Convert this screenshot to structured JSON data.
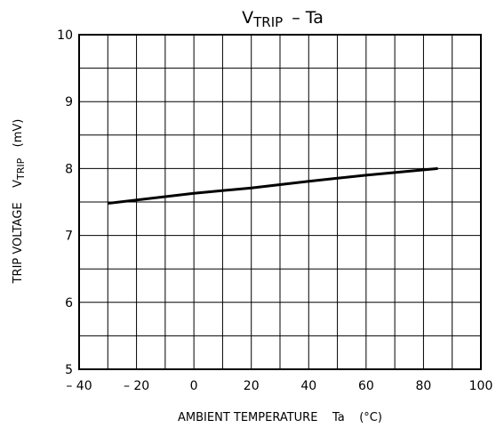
{
  "chart_data": {
    "type": "line",
    "title_main": "V",
    "title_sub": "TRIP",
    "title_rest": "–  Ta",
    "xlabel": "AMBIENT TEMPERATURE    Ta    (°C)",
    "ylabel_main": "TRIP VOLTAGE    V",
    "ylabel_sub": "TRIP",
    "ylabel_rest": "   (mV)",
    "xlim": [
      -40,
      100
    ],
    "ylim": [
      5,
      10
    ],
    "x_ticks": [
      -40,
      -20,
      0,
      20,
      40,
      60,
      80,
      100
    ],
    "x_tick_labels": [
      "– 40",
      "– 20",
      "0",
      "20",
      "40",
      "60",
      "80",
      "100"
    ],
    "y_ticks": [
      5,
      6,
      7,
      8,
      9,
      10
    ],
    "y_tick_labels": [
      "5",
      "6",
      "7",
      "8",
      "9",
      "10"
    ],
    "grid": true,
    "grid_x_step": 10,
    "grid_y_step": 0.5,
    "series": [
      {
        "x": [
          -30,
          0,
          20,
          40,
          60,
          85
        ],
        "values": [
          7.48,
          7.63,
          7.71,
          7.81,
          7.9,
          8.0
        ]
      }
    ]
  }
}
